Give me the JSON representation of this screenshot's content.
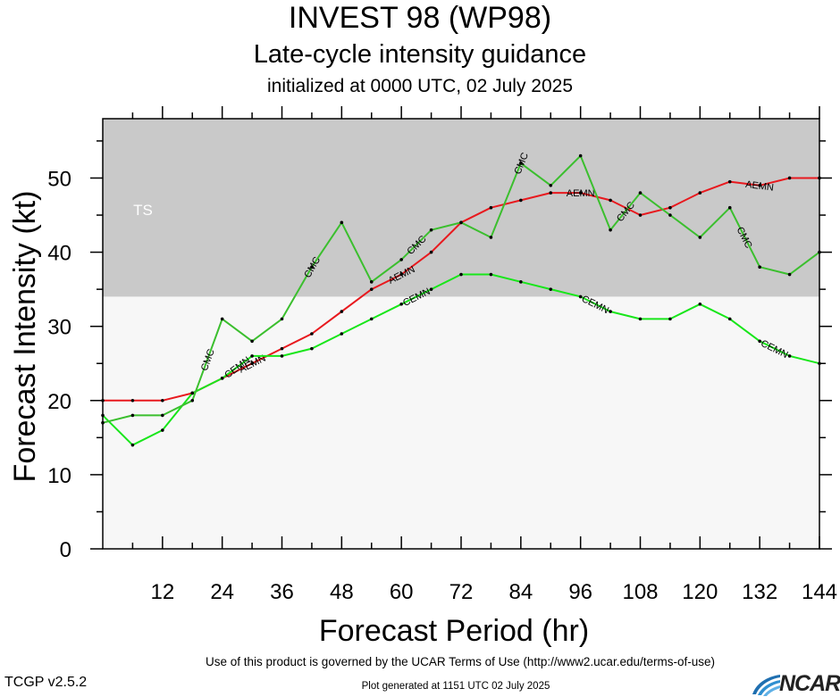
{
  "header": {
    "title": "INVEST 98 (WP98)",
    "subtitle": "Late-cycle intensity guidance",
    "init": "initialized at 0000 UTC, 02 July 2025"
  },
  "footer": {
    "terms": "Use of this product is governed by the UCAR Terms of Use (http://www2.ucar.edu/terms-of-use)",
    "version": "TCGP v2.5.2",
    "generated": "Plot generated at 1151 UTC   02 July 2025",
    "logo_text": "NCAR"
  },
  "chart_data": {
    "type": "line",
    "title": "",
    "xlabel": "Forecast Period (hr)",
    "ylabel": "Forecast Intensity (kt)",
    "xlim": [
      0,
      144
    ],
    "ylim": [
      0,
      58
    ],
    "x_ticks": [
      12,
      24,
      36,
      48,
      60,
      72,
      84,
      96,
      108,
      120,
      132,
      144
    ],
    "y_ticks": [
      0,
      10,
      20,
      30,
      40,
      50
    ],
    "grid": false,
    "legend": "none",
    "bands": [
      {
        "label": "TS",
        "from": 34,
        "to": 58,
        "color": "#c9c9c9"
      },
      {
        "label": "",
        "from": 0,
        "to": 34,
        "color": "#f7f7f7"
      }
    ],
    "series": [
      {
        "name": "AEMN",
        "color": "#e8191e",
        "x": [
          0,
          6,
          12,
          18,
          24,
          30,
          36,
          42,
          48,
          54,
          60,
          66,
          72,
          78,
          84,
          90,
          96,
          102,
          108,
          114,
          120,
          126,
          132,
          138,
          144
        ],
        "y": [
          20,
          20,
          20,
          21,
          23,
          25,
          27,
          29,
          32,
          35,
          37,
          40,
          44,
          46,
          47,
          48,
          48,
          47,
          45,
          46,
          48,
          49.5,
          49,
          50,
          50
        ],
        "labels_at": [
          30,
          60,
          96,
          132
        ]
      },
      {
        "name": "CEMN",
        "color": "#18e61a",
        "x": [
          0,
          6,
          12,
          18,
          24,
          30,
          36,
          42,
          48,
          54,
          60,
          66,
          72,
          78,
          84,
          90,
          96,
          102,
          108,
          114,
          120,
          126,
          132,
          138,
          144
        ],
        "y": [
          18,
          14,
          16,
          21,
          23,
          26,
          26,
          27,
          29,
          31,
          33,
          35,
          37,
          37,
          36,
          35,
          34,
          32,
          31,
          31,
          33,
          31,
          28,
          26,
          25
        ],
        "labels_at": [
          27,
          63,
          99,
          135
        ]
      },
      {
        "name": "CMC",
        "color": "#3bbf2e",
        "x": [
          0,
          6,
          12,
          18,
          24,
          30,
          36,
          42,
          48,
          54,
          60,
          66,
          72,
          78,
          84,
          90,
          96,
          102,
          108,
          114,
          120,
          126,
          132,
          138,
          144
        ],
        "y": [
          17,
          18,
          18,
          20,
          31,
          28,
          31,
          38,
          44,
          36,
          39,
          43,
          44,
          42,
          52,
          49,
          53,
          43,
          48,
          45,
          42,
          46,
          38,
          37,
          40
        ],
        "labels_at": [
          21,
          42,
          63,
          84,
          105,
          129
        ]
      }
    ]
  }
}
